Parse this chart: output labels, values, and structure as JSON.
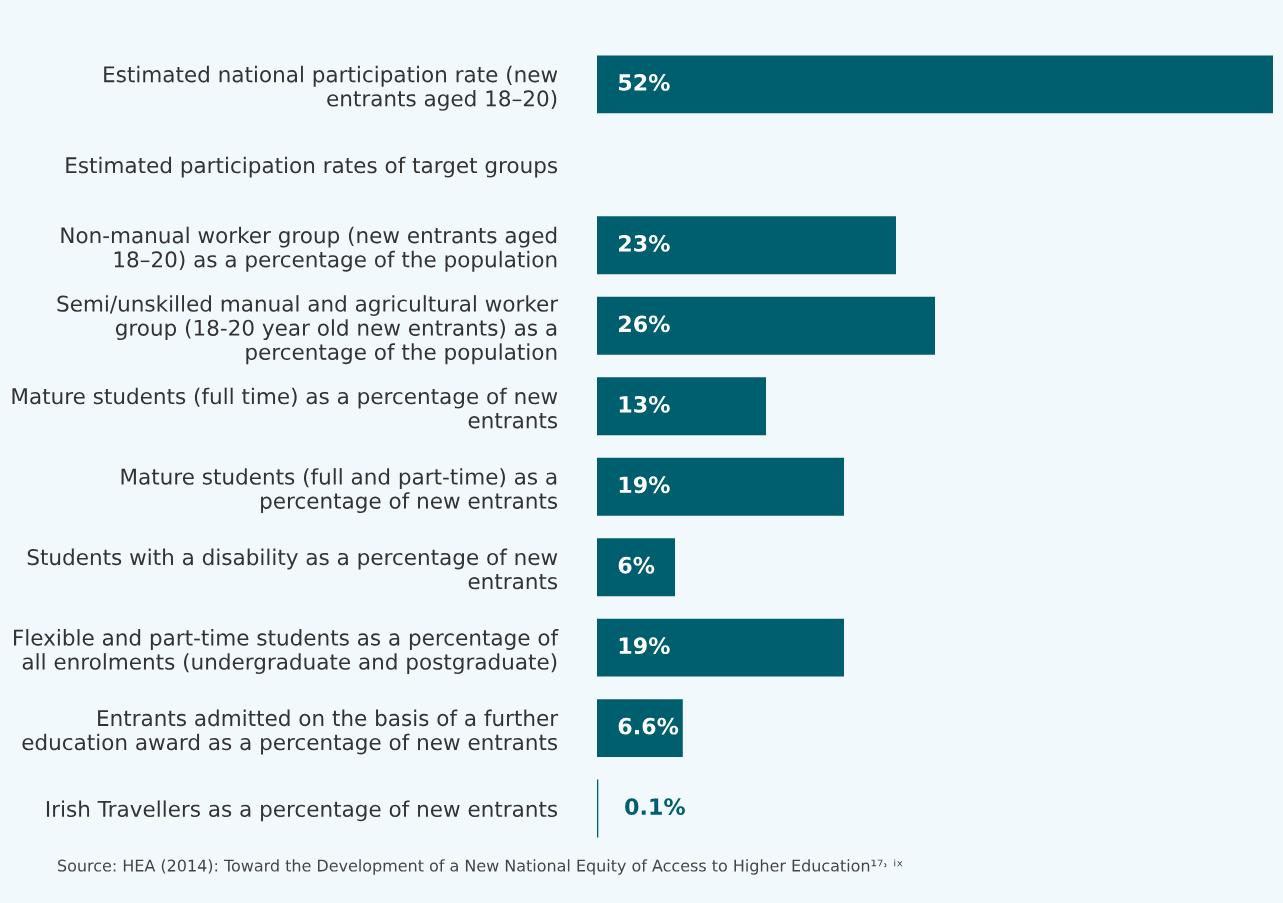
{
  "chart_data": {
    "type": "bar",
    "orientation": "horizontal",
    "categories": [
      "Estimated national participation rate (new\nentrants aged 18–20)",
      "Estimated participation rates of target groups",
      "Non-manual worker group (new entrants aged\n18–20) as a percentage of the population",
      "Semi/unskilled manual and agricultural worker\ngroup (18-20 year old new entrants) as a\npercentage of the population",
      "Mature students (full time) as a percentage of new\nentrants",
      "Mature students (full and part-time) as a\npercentage of new entrants",
      "Students with a disability as a percentage of new\nentrants",
      "Flexible and part-time students as a percentage of\nall enrolments (undergraduate and postgraduate)",
      "Entrants admitted on the basis of a further\neducation award as a percentage of new entrants",
      "Irish Travellers as a percentage of new entrants"
    ],
    "values": [
      52,
      null,
      23,
      26,
      13,
      19,
      6,
      19,
      6.6,
      0.1
    ],
    "value_labels": [
      "52%",
      null,
      "23%",
      "26%",
      "13%",
      "19%",
      "6%",
      "19%",
      "6.6%",
      "0.1%"
    ],
    "color": "#005f6e",
    "grid": false,
    "legend": false,
    "annotations": [
      "Source: HEA (2014): Toward the Development of a New National Equity of Access to Higher Education¹⁷˒ ⁱˣ"
    ]
  }
}
